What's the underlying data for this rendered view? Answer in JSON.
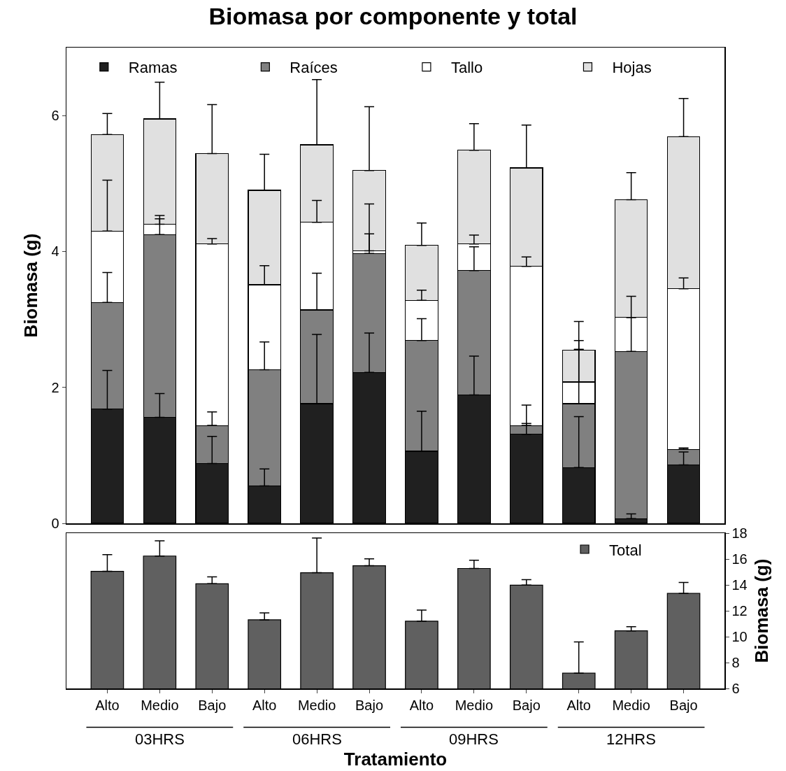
{
  "chart_data": [
    {
      "type": "bar",
      "title": "Biomasa por componente y total",
      "ylabel": "Biomasa (g)",
      "categories": [
        null,
        null,
        null,
        null,
        null,
        null,
        null,
        null,
        null,
        null,
        null,
        null
      ],
      "stacked": true,
      "tick_labels": "y",
      "legend": "top",
      "grid": false,
      "ylim": [
        0,
        7
      ],
      "yticks": [
        0,
        2,
        4,
        6
      ],
      "series": [
        {
          "name": "Ramas",
          "color": "#202020",
          "values": [
            1.68,
            1.56,
            0.88,
            0.55,
            1.76,
            2.22,
            1.06,
            1.89,
            1.31,
            0.82,
            0.07,
            0.86
          ],
          "errors": [
            [
              1.68,
              2.25
            ],
            [
              1.56,
              1.91
            ],
            [
              0.88,
              1.28
            ],
            [
              0.55,
              0.8
            ],
            [
              1.76,
              2.78
            ],
            [
              2.22,
              2.8
            ],
            [
              1.06,
              1.65
            ],
            [
              1.89,
              2.46
            ],
            [
              1.31,
              1.47
            ],
            [
              0.82,
              1.57
            ],
            [
              0.07,
              0.14
            ],
            [
              0.86,
              1.05
            ]
          ]
        },
        {
          "name": "Raíces",
          "color": "#808080",
          "values": [
            1.57,
            2.69,
            0.56,
            1.71,
            1.38,
            1.75,
            1.63,
            1.83,
            0.13,
            0.94,
            2.46,
            0.23
          ],
          "errors": [
            [
              3.25,
              3.69
            ],
            [
              4.25,
              4.48
            ],
            [
              1.44,
              1.64
            ],
            [
              2.26,
              2.67
            ],
            [
              3.14,
              3.68
            ],
            [
              3.97,
              4.26
            ],
            [
              2.69,
              3.01
            ],
            [
              3.72,
              4.07
            ],
            [
              1.44,
              1.74
            ],
            [
              1.76,
              2.56
            ],
            [
              2.53,
              3.03
            ],
            [
              1.09,
              1.11
            ]
          ]
        },
        {
          "name": "Tallo",
          "color": "#ffffff",
          "values": [
            1.05,
            0.15,
            2.67,
            1.25,
            1.29,
            0.04,
            0.59,
            0.39,
            2.34,
            0.32,
            0.5,
            2.36
          ],
          "errors": [
            [
              4.3,
              5.05
            ],
            [
              4.4,
              4.53
            ],
            [
              4.11,
              4.19
            ],
            [
              3.51,
              3.79
            ],
            [
              4.43,
              4.75
            ],
            [
              4.01,
              4.7
            ],
            [
              3.28,
              3.43
            ],
            [
              4.11,
              4.24
            ],
            [
              3.78,
              3.92
            ],
            [
              2.08,
              2.69
            ],
            [
              3.03,
              3.34
            ],
            [
              3.45,
              3.61
            ]
          ]
        },
        {
          "name": "Hojas",
          "color": "#e0e0e0",
          "values": [
            1.42,
            1.55,
            1.33,
            1.39,
            1.14,
            1.18,
            0.81,
            1.38,
            1.45,
            0.47,
            1.73,
            2.24
          ],
          "errors": [
            [
              5.72,
              6.03
            ],
            [
              5.95,
              6.49
            ],
            [
              5.44,
              6.16
            ],
            [
              4.9,
              5.43
            ],
            [
              5.57,
              6.53
            ],
            [
              5.19,
              6.13
            ],
            [
              4.09,
              4.42
            ],
            [
              5.49,
              5.88
            ],
            [
              5.23,
              5.86
            ],
            [
              2.55,
              2.97
            ],
            [
              4.76,
              5.16
            ],
            [
              5.69,
              6.25
            ]
          ]
        }
      ]
    },
    {
      "type": "bar",
      "xlabel": "Tratamiento",
      "ylabel": "Biomasa (g)",
      "categories": [
        "Alto",
        "Medio",
        "Bajo",
        "Alto",
        "Medio",
        "Bajo",
        "Alto",
        "Medio",
        "Bajo",
        "Alto",
        "Medio",
        "Bajo"
      ],
      "annotations": [
        "03HRS",
        "06HRS",
        "09HRS",
        "12HRS"
      ],
      "legend": "top right",
      "grid": false,
      "ylim": [
        6,
        18
      ],
      "yticks": [
        6,
        8,
        10,
        12,
        14,
        16,
        18
      ],
      "series": [
        {
          "name": "Total",
          "color": "#606060",
          "values": [
            15.05,
            16.23,
            14.09,
            11.3,
            14.94,
            15.48,
            11.2,
            15.27,
            13.98,
            7.18,
            10.45,
            13.34
          ],
          "errors": [
            [
              15.05,
              16.34
            ],
            [
              16.23,
              17.4
            ],
            [
              14.09,
              14.62
            ],
            [
              11.3,
              11.84
            ],
            [
              14.94,
              17.62
            ],
            [
              15.48,
              16.02
            ],
            [
              11.2,
              12.05
            ],
            [
              15.27,
              15.91
            ],
            [
              13.98,
              14.41
            ],
            [
              7.18,
              9.59
            ],
            [
              10.45,
              10.77
            ],
            [
              13.34,
              14.19
            ]
          ]
        }
      ]
    }
  ]
}
